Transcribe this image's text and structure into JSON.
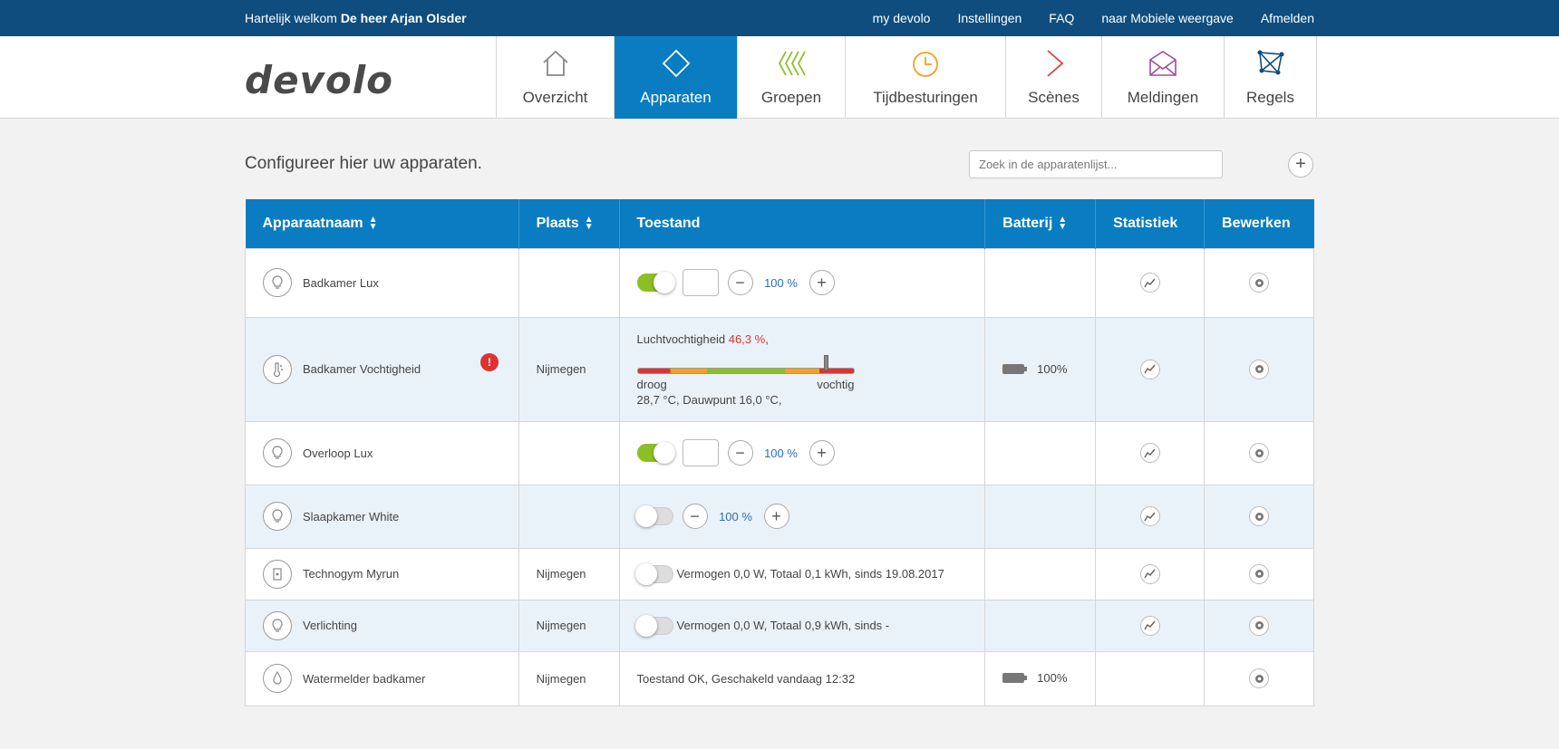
{
  "topbar": {
    "welcome_prefix": "Hartelijk welkom",
    "user_name": "De heer Arjan Olsder",
    "links": [
      "my devolo",
      "Instellingen",
      "FAQ",
      "naar Mobiele weergave",
      "Afmelden"
    ]
  },
  "logo": "devolo",
  "nav": [
    {
      "label": "Overzicht",
      "icon": "house-icon",
      "color": "#888888"
    },
    {
      "label": "Apparaten",
      "icon": "diamond-icon",
      "color": "#ffffff",
      "active": true
    },
    {
      "label": "Groepen",
      "icon": "chevrons-icon",
      "color": "#8cbf26"
    },
    {
      "label": "Tijdbesturingen",
      "icon": "clock-icon",
      "color": "#f5a020"
    },
    {
      "label": "Scènes",
      "icon": "play-icon",
      "color": "#e04040"
    },
    {
      "label": "Meldingen",
      "icon": "envelope-icon",
      "color": "#a0509a"
    },
    {
      "label": "Regels",
      "icon": "network-icon",
      "color": "#0f4d7f"
    }
  ],
  "intro": "Configureer hier uw apparaten.",
  "search": {
    "placeholder": "Zoek in de apparatenlijst..."
  },
  "add_label": "+",
  "columns": {
    "name": "Apparaatnaam",
    "place": "Plaats",
    "state": "Toestand",
    "battery": "Batterij",
    "stats": "Statistiek",
    "edit": "Bewerken"
  },
  "colors": {
    "accent": "#0a7dc2",
    "topbar": "#0f4d7f",
    "toggle_on": "#8cbf26",
    "alert": "#dd3333"
  },
  "devices": [
    {
      "name": "Badkamer Lux",
      "icon": "bulb-icon",
      "place": "",
      "toggle": "on",
      "value": "100 %"
    },
    {
      "name": "Badkamer Vochtigheid",
      "icon": "thermometer-icon",
      "place": "Nijmegen",
      "humidity_label": "Luchtvochtigheid",
      "humidity_value": "46,3 %",
      "humidity_sep": ",",
      "humidity_level": 0.87,
      "low_label": "droog",
      "high_label": "vochtig",
      "temp_text": "28,7 °C,  Dauwpunt 16,0 °C,",
      "battery": "100%"
    },
    {
      "name": "Overloop Lux",
      "icon": "bulb-icon",
      "place": "",
      "toggle": "on",
      "value": "100 %"
    },
    {
      "name": "Slaapkamer White",
      "icon": "bulb-icon",
      "place": "",
      "toggle": "off",
      "value": "100 %"
    },
    {
      "name": "Technogym Myrun",
      "icon": "plug-icon",
      "place": "Nijmegen",
      "toggle": "off",
      "text": "Vermogen 0,0 W,  Totaal 0,1 kWh,  sinds 19.08.2017"
    },
    {
      "name": "Verlichting",
      "icon": "bulb-icon",
      "place": "Nijmegen",
      "toggle": "off",
      "text": "Vermogen 0,0 W,  Totaal 0,9 kWh,  sinds -"
    },
    {
      "name": "Watermelder badkamer",
      "icon": "drop-icon",
      "place": "Nijmegen",
      "text": "Toestand OK,  Geschakeld vandaag 12:32",
      "battery": "100%"
    }
  ]
}
